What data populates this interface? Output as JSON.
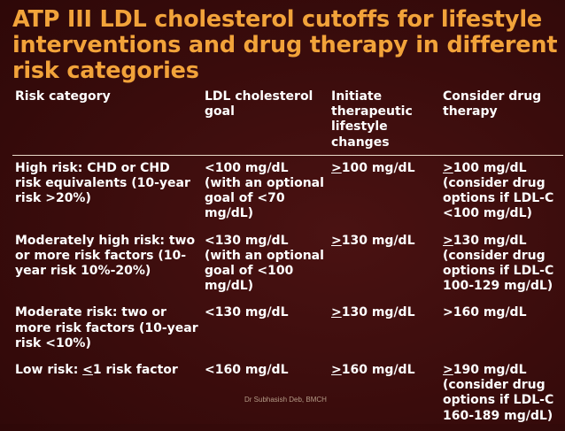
{
  "title": "ATP III LDL cholesterol cutoffs for lifestyle interventions and drug therapy in different risk categories",
  "table": {
    "headers": {
      "risk": "Risk category",
      "ldl_goal": "LDL cholesterol goal",
      "tlc": "Initiate therapeutic lifestyle changes",
      "drug": "Consider drug therapy"
    },
    "rows": [
      {
        "risk": "High risk: CHD or CHD risk equivalents (10-year risk >20%)",
        "ldl_goal": "<100 mg/dL (with an optional goal of <70 mg/dL)",
        "tlc_sym": ">",
        "tlc": "100 mg/dL",
        "drug_sym": ">",
        "drug": "100 mg/dL (consider drug options if LDL-C <100 mg/dL)"
      },
      {
        "risk": "Moderately high risk: two or more risk factors (10-year risk 10%-20%)",
        "ldl_goal": "<130 mg/dL (with an optional goal of <100 mg/dL)",
        "tlc_sym": ">",
        "tlc": "130 mg/dL",
        "drug_sym": ">",
        "drug": "130 mg/dL (consider drug options if LDL-C 100-129 mg/dL)"
      },
      {
        "risk": "Moderate risk: two or more risk factors (10-year risk <10%)",
        "ldl_goal": "<130 mg/dL",
        "tlc_sym": ">",
        "tlc": "130 mg/dL",
        "drug": ">160 mg/dL"
      },
      {
        "risk_prefix": "Low risk: ",
        "risk_sym": "<",
        "risk": "1 risk factor",
        "ldl_goal": "<160 mg/dL",
        "tlc_sym": ">",
        "tlc": "160 mg/dL",
        "drug_sym": ">",
        "drug": "190 mg/dL (consider drug options if LDL-C 160-189 mg/dL)"
      }
    ]
  },
  "watermark": "Dr Subhasish Deb, BMCH"
}
